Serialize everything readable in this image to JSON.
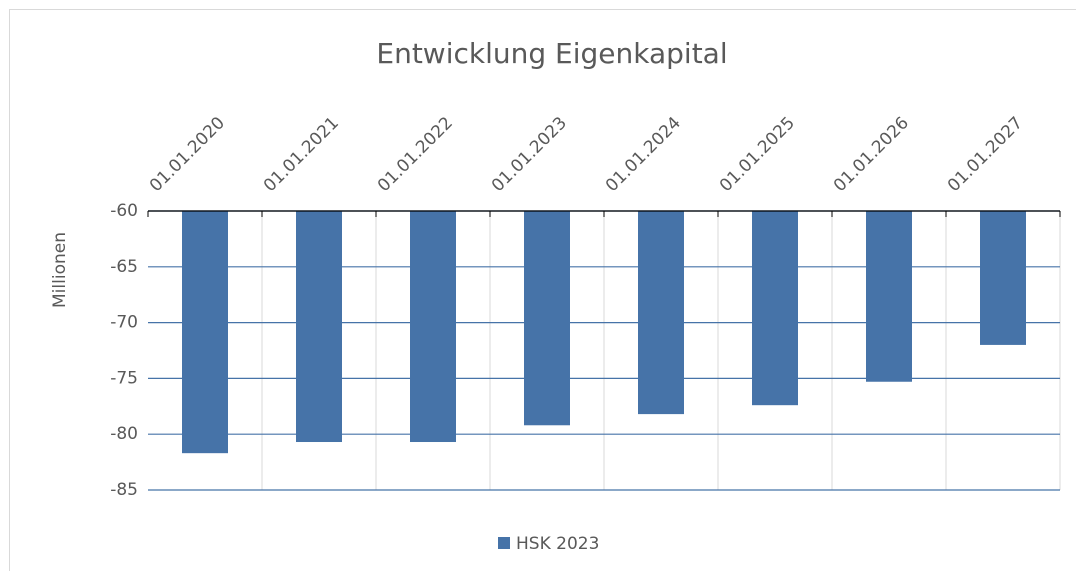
{
  "chart_data": {
    "type": "bar",
    "title": "Entwicklung Eigenkapital",
    "y_label": "Millionen",
    "categories": [
      "01.01.2020",
      "01.01.2021",
      "01.01.2022",
      "01.01.2023",
      "01.01.2024",
      "01.01.2025",
      "01.01.2026",
      "01.01.2027"
    ],
    "series": [
      {
        "name": "HSK 2023",
        "color": "#4673a8",
        "values": [
          -81.7,
          -80.7,
          -80.7,
          -79.2,
          -78.2,
          -77.4,
          -75.3,
          -72.0
        ]
      }
    ],
    "ylim": [
      -85,
      -60
    ],
    "yticks": [
      -85,
      -80,
      -75,
      -70,
      -65,
      -60
    ],
    "grid": true,
    "legend": "bottom"
  }
}
